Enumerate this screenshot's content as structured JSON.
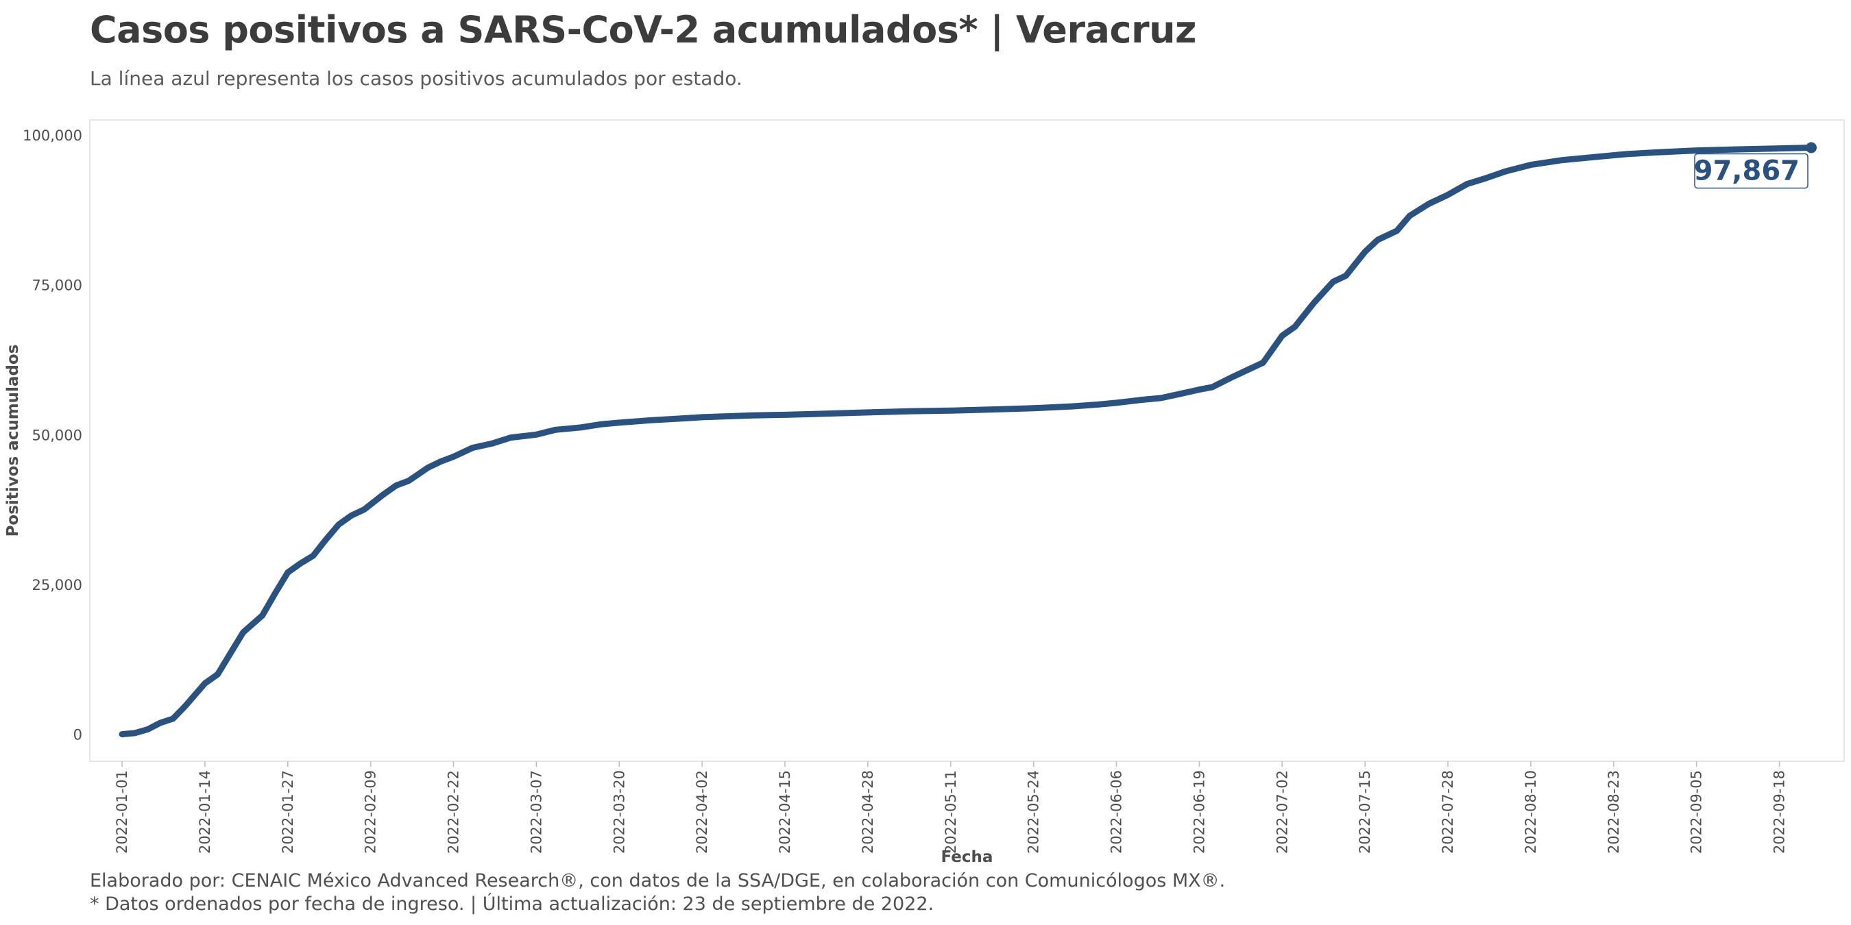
{
  "header": {
    "title": "Casos positivos a SARS-CoV-2 acumulados* | Veracruz",
    "subtitle": "La línea azul representa los casos positivos acumulados por estado."
  },
  "footer": {
    "caption_line1": "Elaborado por: CENAIC México Advanced Research®, con datos de la SSA/DGE, en colaboración con Comunicólogos MX®.",
    "caption_line2": "* Datos ordenados por fecha de ingreso. | Última actualización: 23 de septiembre de 2022."
  },
  "colors": {
    "line": "#2a5280",
    "label_text": "#2a5280",
    "grid": "none",
    "panel_border": "#e6e6e6",
    "axis_text": "#4d4d4d"
  },
  "chart_data": {
    "type": "line",
    "title": "Casos positivos a SARS-CoV-2 acumulados* | Veracruz",
    "subtitle": "La línea azul representa los casos positivos acumulados por estado.",
    "xlabel": "Fecha",
    "ylabel": "Positivos acumulados",
    "grid": false,
    "legend": "none",
    "x_range": [
      "2022-01-01",
      "2022-09-23"
    ],
    "ylim": [
      -4500,
      102500
    ],
    "y_ticks": [
      0,
      25000,
      50000,
      75000,
      100000
    ],
    "y_tick_labels": [
      "0",
      "25,000",
      "50,000",
      "75,000",
      "100,000"
    ],
    "x_ticks": [
      "2022-01-01",
      "2022-01-14",
      "2022-01-27",
      "2022-02-09",
      "2022-02-22",
      "2022-03-07",
      "2022-03-20",
      "2022-04-02",
      "2022-04-15",
      "2022-04-28",
      "2022-05-11",
      "2022-05-24",
      "2022-06-06",
      "2022-06-19",
      "2022-07-02",
      "2022-07-15",
      "2022-07-28",
      "2022-08-10",
      "2022-08-23",
      "2022-09-05",
      "2022-09-18"
    ],
    "end_label": "97,867",
    "series": [
      {
        "color": "#2a5280",
        "points": [
          [
            "2022-01-01",
            0
          ],
          [
            "2022-01-03",
            200
          ],
          [
            "2022-01-05",
            800
          ],
          [
            "2022-01-07",
            1900
          ],
          [
            "2022-01-09",
            2600
          ],
          [
            "2022-01-11",
            4800
          ],
          [
            "2022-01-14",
            8500
          ],
          [
            "2022-01-16",
            10000
          ],
          [
            "2022-01-18",
            13500
          ],
          [
            "2022-01-20",
            17000
          ],
          [
            "2022-01-23",
            19800
          ],
          [
            "2022-01-25",
            23500
          ],
          [
            "2022-01-27",
            27000
          ],
          [
            "2022-01-29",
            28500
          ],
          [
            "2022-01-31",
            29800
          ],
          [
            "2022-02-02",
            32500
          ],
          [
            "2022-02-04",
            35000
          ],
          [
            "2022-02-06",
            36500
          ],
          [
            "2022-02-08",
            37500
          ],
          [
            "2022-02-11",
            40000
          ],
          [
            "2022-02-13",
            41500
          ],
          [
            "2022-02-15",
            42300
          ],
          [
            "2022-02-18",
            44500
          ],
          [
            "2022-02-20",
            45500
          ],
          [
            "2022-02-22",
            46300
          ],
          [
            "2022-02-25",
            47800
          ],
          [
            "2022-02-28",
            48500
          ],
          [
            "2022-03-03",
            49500
          ],
          [
            "2022-03-07",
            50000
          ],
          [
            "2022-03-10",
            50800
          ],
          [
            "2022-03-14",
            51200
          ],
          [
            "2022-03-17",
            51700
          ],
          [
            "2022-03-20",
            52000
          ],
          [
            "2022-03-25",
            52400
          ],
          [
            "2022-03-30",
            52700
          ],
          [
            "2022-04-02",
            52900
          ],
          [
            "2022-04-10",
            53200
          ],
          [
            "2022-04-15",
            53300
          ],
          [
            "2022-04-20",
            53450
          ],
          [
            "2022-04-28",
            53700
          ],
          [
            "2022-05-05",
            53900
          ],
          [
            "2022-05-11",
            54000
          ],
          [
            "2022-05-18",
            54200
          ],
          [
            "2022-05-24",
            54400
          ],
          [
            "2022-05-30",
            54700
          ],
          [
            "2022-06-03",
            55000
          ],
          [
            "2022-06-06",
            55300
          ],
          [
            "2022-06-10",
            55800
          ],
          [
            "2022-06-13",
            56100
          ],
          [
            "2022-06-16",
            56800
          ],
          [
            "2022-06-19",
            57500
          ],
          [
            "2022-06-21",
            57900
          ],
          [
            "2022-06-24",
            59500
          ],
          [
            "2022-06-27",
            61000
          ],
          [
            "2022-06-29",
            62000
          ],
          [
            "2022-07-02",
            66500
          ],
          [
            "2022-07-04",
            68000
          ],
          [
            "2022-07-07",
            72000
          ],
          [
            "2022-07-10",
            75500
          ],
          [
            "2022-07-12",
            76500
          ],
          [
            "2022-07-15",
            80500
          ],
          [
            "2022-07-17",
            82500
          ],
          [
            "2022-07-20",
            84000
          ],
          [
            "2022-07-22",
            86500
          ],
          [
            "2022-07-25",
            88500
          ],
          [
            "2022-07-28",
            90000
          ],
          [
            "2022-07-31",
            91800
          ],
          [
            "2022-08-03",
            92800
          ],
          [
            "2022-08-06",
            93900
          ],
          [
            "2022-08-10",
            95000
          ],
          [
            "2022-08-15",
            95800
          ],
          [
            "2022-08-20",
            96300
          ],
          [
            "2022-08-25",
            96800
          ],
          [
            "2022-08-30",
            97100
          ],
          [
            "2022-09-05",
            97400
          ],
          [
            "2022-09-12",
            97600
          ],
          [
            "2022-09-18",
            97750
          ],
          [
            "2022-09-23",
            97867
          ]
        ]
      }
    ]
  }
}
